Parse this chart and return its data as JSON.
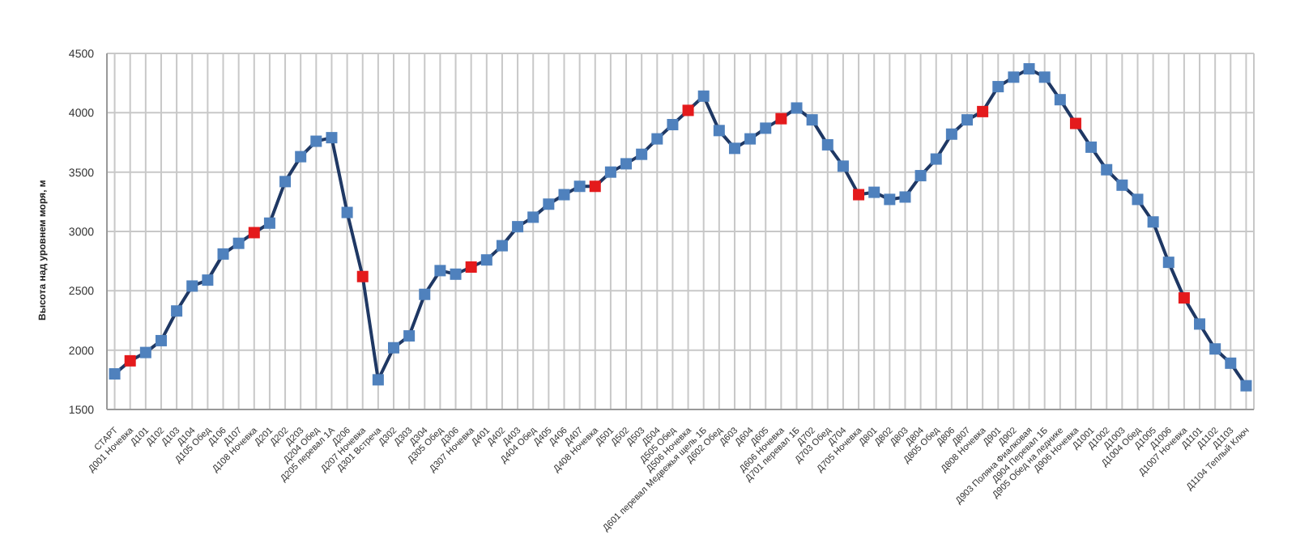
{
  "chart_data": {
    "type": "line",
    "ylabel": "Высота над уровнем моря, м",
    "categories": [
      "СТАРТ",
      "Д001 Ночевка",
      "Д101",
      "Д102",
      "Д103",
      "Д104",
      "Д105 Обед",
      "Д106",
      "Д107",
      "Д108 Ночевка",
      "Д201",
      "Д202",
      "Д203",
      "Д204 Обед",
      "Д205 перевал 1А",
      "Д206",
      "Д207 Ночевка",
      "Д301 Встреча",
      "Д302",
      "Д303",
      "Д304",
      "Д305 Обед",
      "Д306",
      "Д307 Ночевка",
      "Д401",
      "Д402",
      "Д403",
      "Д404 Обед",
      "Д405",
      "Д406",
      "Д407",
      "Д408 Ночевка",
      "Д501",
      "Д502",
      "Д503",
      "Д504",
      "Д505 Обед",
      "Д506 Ночевка",
      "Д601 перевал Медвежья щель 1Б",
      "Д602 Обед",
      "Д603",
      "Д604",
      "Д605",
      "Д606 Ночевка",
      "Д701 перевал 1Б",
      "Д702",
      "Д703 Обед",
      "Д704",
      "Д705 Ночевка",
      "Д801",
      "Д802",
      "Д803",
      "Д804",
      "Д805 Обед",
      "Д806",
      "Д807",
      "Д808 Ночевка",
      "Д901",
      "Д902",
      "Д903 Поляна Фиалковая",
      "Д904 Перевал 1Б",
      "Д905 Обед на леднике",
      "Д906 Ночевка",
      "Д1001",
      "Д1002",
      "Д1003",
      "Д1004 Обед",
      "Д1005",
      "Д1006",
      "Д1007 Ночевка",
      "Д1101",
      "Д1102",
      "Д1103",
      "Д1104 Теплый Ключ"
    ],
    "series": [
      {
        "color": "#1f3864",
        "values": [
          1800,
          1910,
          1980,
          2080,
          2330,
          2540,
          2590,
          2810,
          2900,
          2990,
          3070,
          3420,
          3630,
          3760,
          3790,
          3160,
          2620,
          1750,
          2020,
          2120,
          2470,
          2670,
          2640,
          2700,
          2760,
          2880,
          3040,
          3120,
          3230,
          3310,
          3380,
          3380,
          3500,
          3570,
          3650,
          3780,
          3900,
          4020,
          4140,
          3850,
          3700,
          3780,
          3870,
          3950,
          4040,
          3940,
          3730,
          3550,
          3310,
          3330,
          3270,
          3290,
          3470,
          3610,
          3820,
          3940,
          4010,
          4220,
          4300,
          4370,
          4300,
          4110,
          3910,
          3710,
          3520,
          3390,
          3270,
          3080,
          2740,
          2440,
          2220,
          2010,
          1890,
          1700
        ],
        "colors": [
          "#4f81bd",
          "#e41a1c",
          "#4f81bd",
          "#4f81bd",
          "#4f81bd",
          "#4f81bd",
          "#4f81bd",
          "#4f81bd",
          "#4f81bd",
          "#e41a1c",
          "#4f81bd",
          "#4f81bd",
          "#4f81bd",
          "#4f81bd",
          "#4f81bd",
          "#4f81bd",
          "#e41a1c",
          "#4f81bd",
          "#4f81bd",
          "#4f81bd",
          "#4f81bd",
          "#4f81bd",
          "#4f81bd",
          "#e41a1c",
          "#4f81bd",
          "#4f81bd",
          "#4f81bd",
          "#4f81bd",
          "#4f81bd",
          "#4f81bd",
          "#4f81bd",
          "#e41a1c",
          "#4f81bd",
          "#4f81bd",
          "#4f81bd",
          "#4f81bd",
          "#4f81bd",
          "#e41a1c",
          "#4f81bd",
          "#4f81bd",
          "#4f81bd",
          "#4f81bd",
          "#4f81bd",
          "#e41a1c",
          "#4f81bd",
          "#4f81bd",
          "#4f81bd",
          "#4f81bd",
          "#e41a1c",
          "#4f81bd",
          "#4f81bd",
          "#4f81bd",
          "#4f81bd",
          "#4f81bd",
          "#4f81bd",
          "#4f81bd",
          "#e41a1c",
          "#4f81bd",
          "#4f81bd",
          "#4f81bd",
          "#4f81bd",
          "#4f81bd",
          "#e41a1c",
          "#4f81bd",
          "#4f81bd",
          "#4f81bd",
          "#4f81bd",
          "#4f81bd",
          "#4f81bd",
          "#e41a1c",
          "#4f81bd",
          "#4f81bd",
          "#4f81bd",
          "#4f81bd"
        ]
      }
    ],
    "ylim": [
      1500,
      4500
    ],
    "yticks": [
      1500,
      2000,
      2500,
      3000,
      3500,
      4000,
      4500
    ],
    "grid": true,
    "marker": "square",
    "line_style": "solid"
  }
}
